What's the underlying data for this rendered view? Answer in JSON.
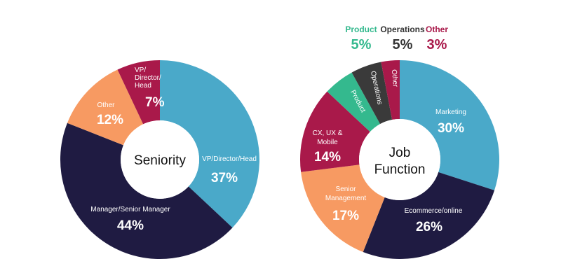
{
  "chart_data": [
    {
      "type": "pie",
      "title": "Seniority",
      "slices": [
        {
          "label": "VP/Director/Head",
          "value": 37,
          "display": "37%",
          "color": "#4aa9c9"
        },
        {
          "label": "Manager/Senior Manager",
          "value": 44,
          "display": "44%",
          "color": "#1f1b42"
        },
        {
          "label": "Other",
          "value": 12,
          "display": "12%",
          "color": "#f79a62"
        },
        {
          "label": "VP/ Director/ Head",
          "value": 7,
          "display": "7%",
          "color": "#a9194a"
        }
      ]
    },
    {
      "type": "pie",
      "title": "Job Function",
      "slices": [
        {
          "label": "Marketing",
          "value": 30,
          "display": "30%",
          "color": "#4aa9c9"
        },
        {
          "label": "Ecommerce/online",
          "value": 26,
          "display": "26%",
          "color": "#1f1b42"
        },
        {
          "label": "Senior Management",
          "value": 17,
          "display": "17%",
          "color": "#f79a62"
        },
        {
          "label": "CX, UX & Mobile",
          "value": 14,
          "display": "14%",
          "color": "#a9194a"
        },
        {
          "label": "Product",
          "value": 5,
          "display": "5%",
          "color": "#34b98e"
        },
        {
          "label": "Operations",
          "value": 5,
          "display": "5%",
          "color": "#3a3a3a"
        },
        {
          "label": "Other",
          "value": 3,
          "display": "3%",
          "color": "#a9194a"
        }
      ]
    }
  ],
  "small_slice_legend": [
    {
      "label": "Product",
      "value": "5%",
      "color": "#34b98e"
    },
    {
      "label": "Operations",
      "value": "5%",
      "color": "#333333"
    },
    {
      "label": "Other",
      "value": "3%",
      "color": "#a9194a"
    }
  ]
}
